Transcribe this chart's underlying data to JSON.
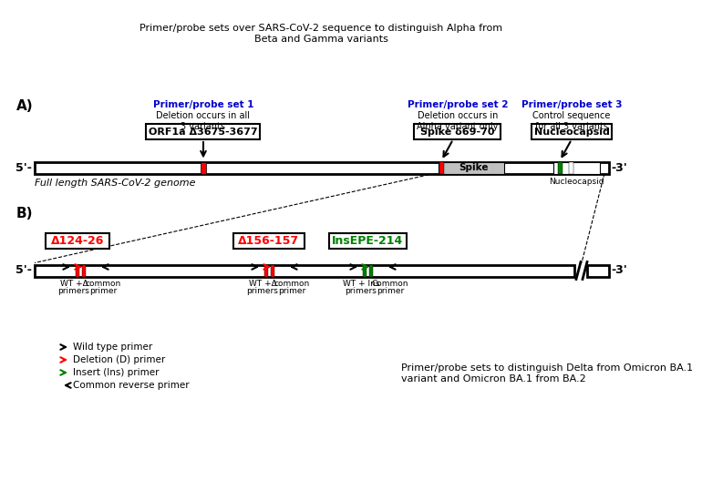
{
  "title_A": "Primer/probe sets over SARS-CoV-2 sequence to distinguish Alpha from\nBeta and Gamma variants",
  "genome_label_A": "Full length SARS-CoV-2 genome",
  "label_5prime": "5'-",
  "label_3prime": "-3'",
  "panel_A_label": "A)",
  "panel_B_label": "B)",
  "set1_title": "Primer/probe set 1",
  "set1_subtitle": "Deletion occurs in all\n3 variants",
  "set1_box": "ORF1a Δ3675-3677",
  "set2_title": "Primer/probe set 2",
  "set2_subtitle": "Deletion occurs in\nAlpha variant only",
  "set2_box": "Spike δ69-70",
  "set3_title": "Primer/probe set 3",
  "set3_subtitle": "Control sequence\nfor all 3 variants",
  "set3_box": "Nucleocapsid",
  "nucleocapsid_label": "Nucleocapsid",
  "spike_label": "Spike",
  "B_box1": "Δ124-26",
  "B_box2": "Δ156-157",
  "B_box3": "InsEPE-214",
  "B_label_5prime": "5'-",
  "B_label_3prime": "-3'",
  "B_label1a": "WT +Δ",
  "B_label1b": "primers",
  "B_label2a": "common",
  "B_label2b": "primer",
  "B_label3a": "WT +Δ",
  "B_label3b": "primers",
  "B_label4a": "common",
  "B_label4b": "primer",
  "B_label5a": "WT + Ins",
  "B_label5b": "primers",
  "B_label6a": "Common",
  "B_label6b": "primer",
  "legend_wt": "Wild type primer",
  "legend_del": "Deletion (D) primer",
  "legend_ins": "Insert (Ins) primer",
  "legend_com": "Common reverse primer",
  "B_caption": "Primer/probe sets to distinguish Delta from Omicron BA.1\nvariant and Omicron BA.1 from BA.2",
  "color_blue": "#0000CC",
  "color_red": "#FF0000",
  "color_green": "#008000",
  "color_black": "#000000",
  "color_spike_bg": "#C0C0C0",
  "color_white": "#FFFFFF",
  "color_bg": "#FFFFFF"
}
